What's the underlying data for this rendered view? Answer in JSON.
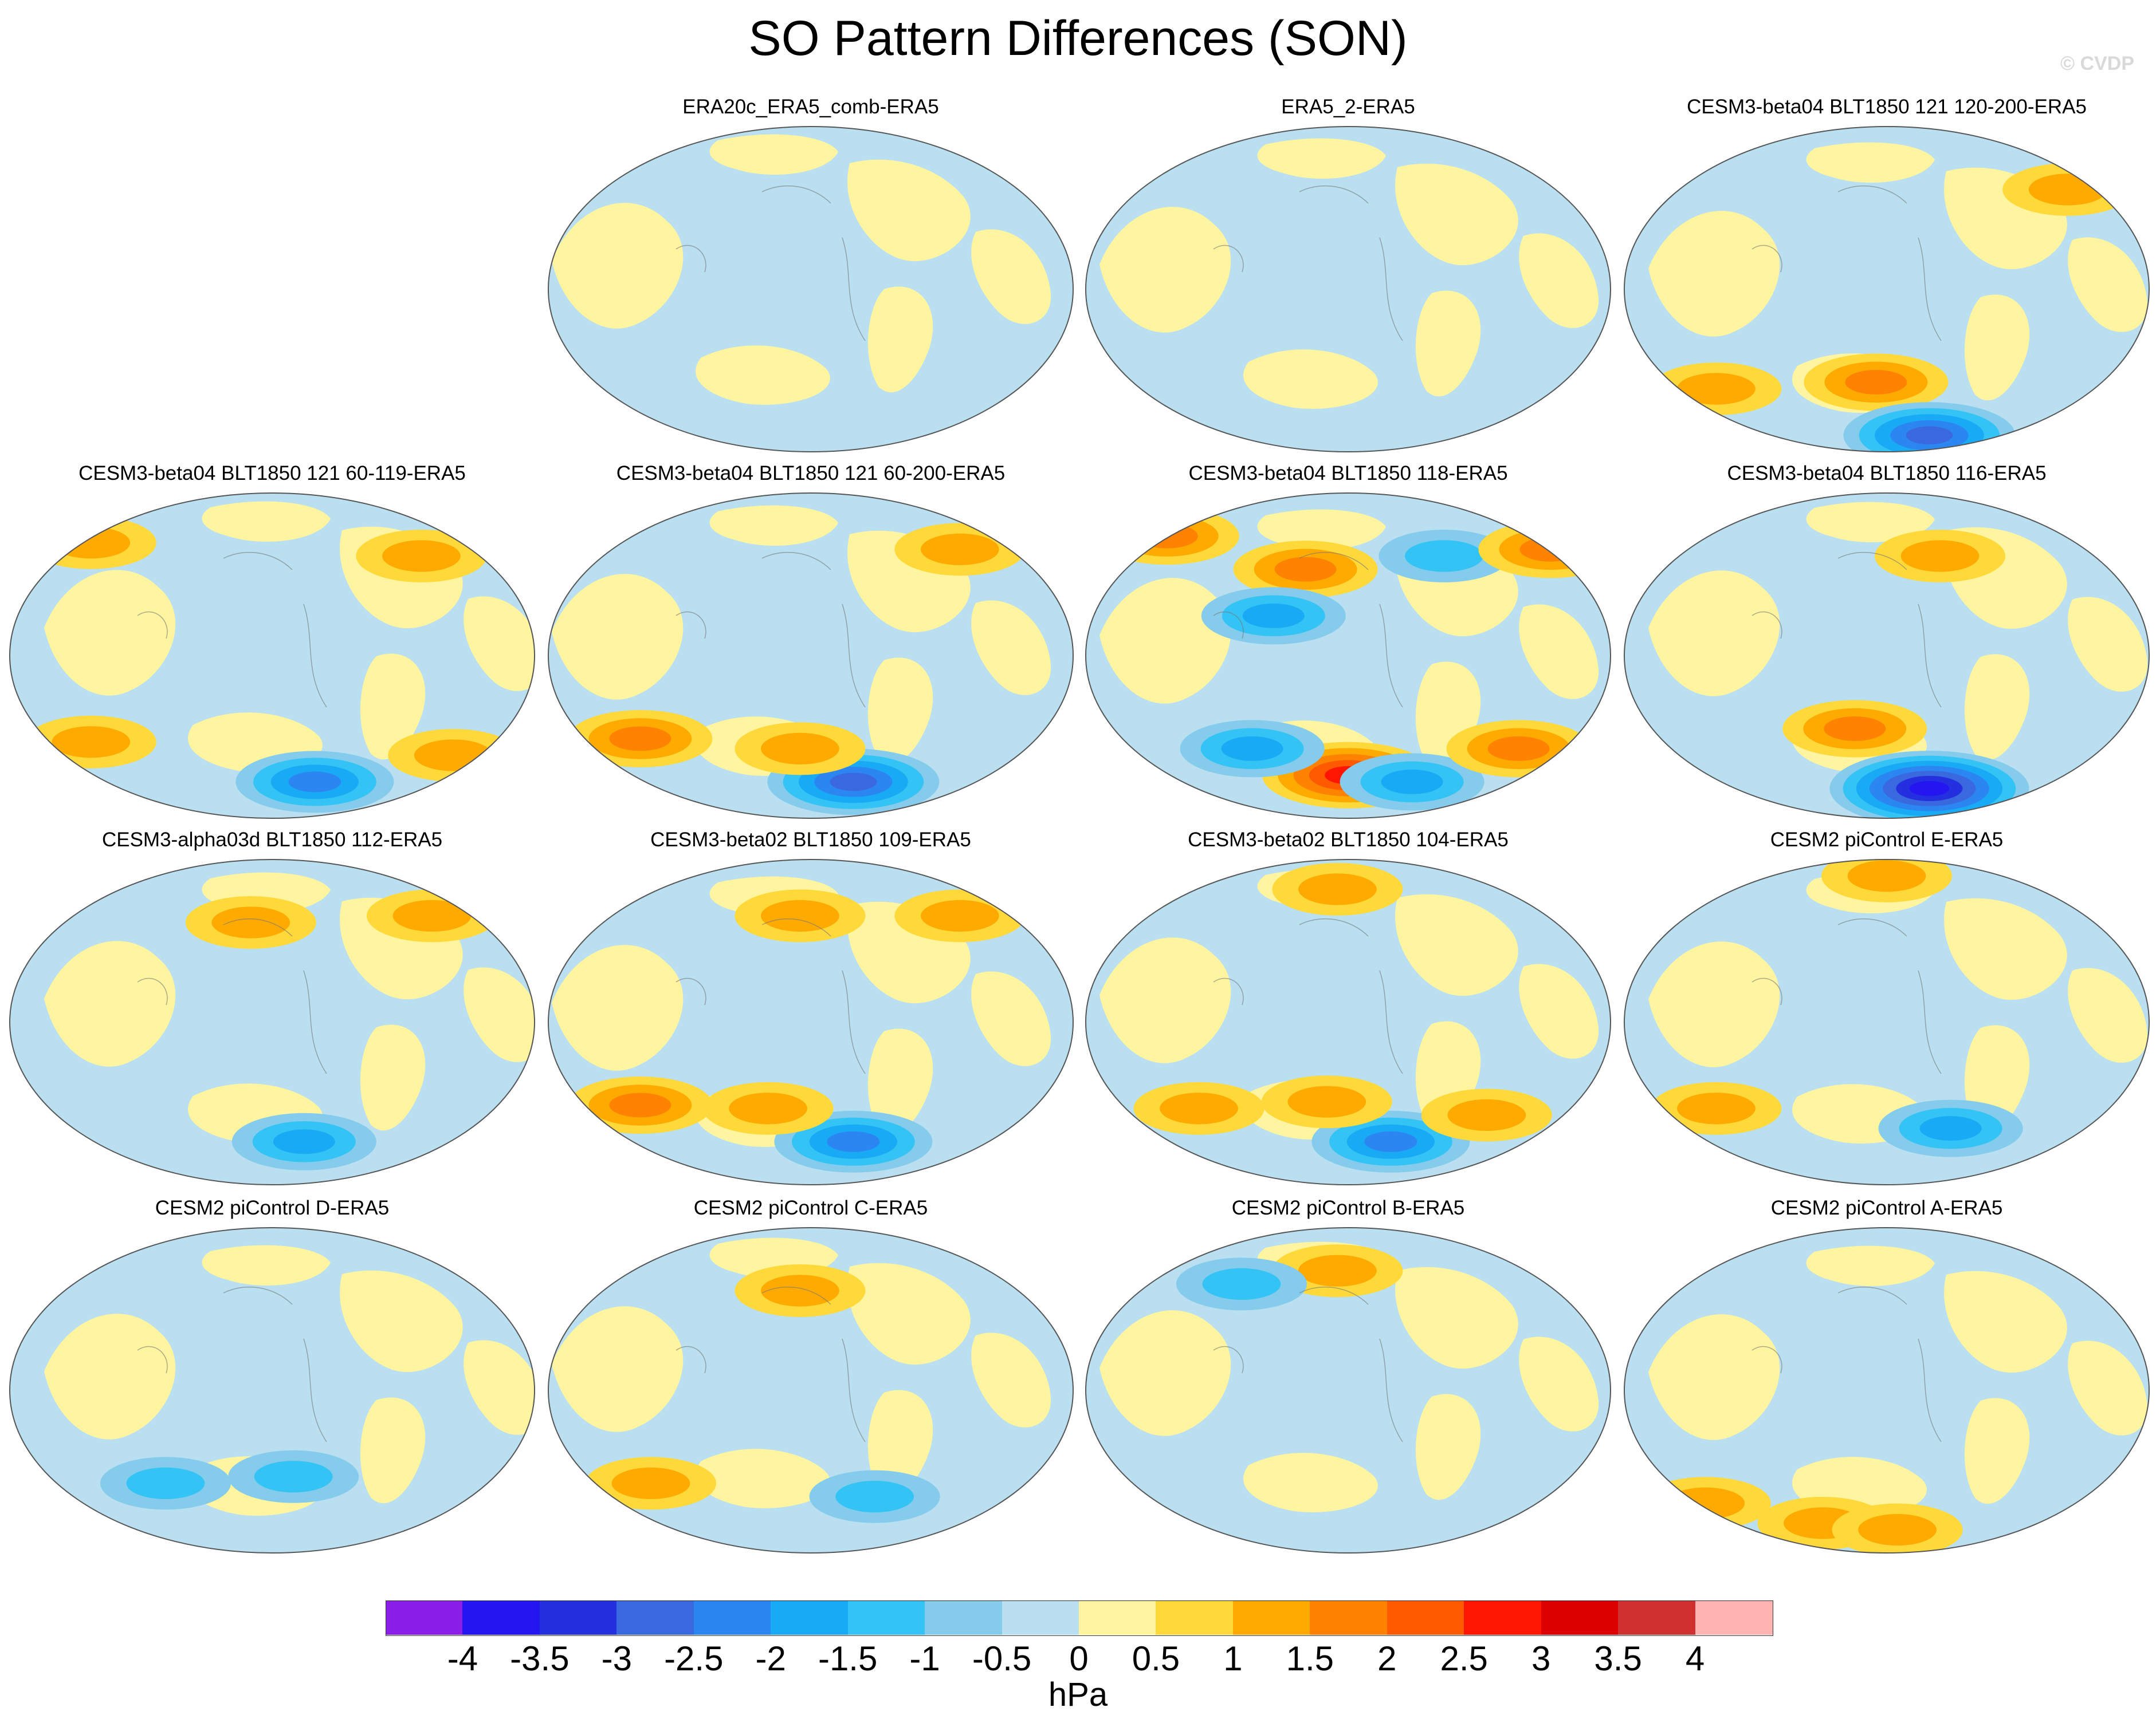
{
  "figure": {
    "title": "SO Pattern Differences (SON)",
    "watermark": "© CVDP"
  },
  "colors": {
    "ocean_neg": "#b9dff0",
    "land_pos": "#fff4a0"
  },
  "chart_data": {
    "type": "map-panels",
    "units": "hPa",
    "color_scale": {
      "boxes": [
        "#8b1fe8",
        "#2316f0",
        "#2430e0",
        "#3a68df",
        "#2b86f2",
        "#19aaf5",
        "#33c3f4",
        "#84cbec",
        "#b9dff0",
        "#fff4a0",
        "#ffd93a",
        "#ffaa00",
        "#ff8200",
        "#ff5a00",
        "#ff1500",
        "#dd0000",
        "#cf3030",
        "#ffb3b3"
      ],
      "labels": [
        "-4",
        "-3.5",
        "-3",
        "-2.5",
        "-2",
        "-1.5",
        "-1",
        "-0.5",
        "0",
        "0.5",
        "1",
        "1.5",
        "2",
        "2.5",
        "3",
        "3.5",
        "4"
      ]
    },
    "panels": [
      {
        "title": "ERA20c_ERA5_comb-ERA5",
        "row": 0,
        "col": 1,
        "features": []
      },
      {
        "title": "ERA5_2-ERA5",
        "row": 0,
        "col": 2,
        "features": []
      },
      {
        "title": "CESM3-beta04 BLT1850 121 120-200-ERA5",
        "row": 0,
        "col": 3,
        "features": [
          {
            "u": 0.18,
            "v": 0.8,
            "level": 1
          },
          {
            "u": 0.48,
            "v": 0.78,
            "level": 1.5
          },
          {
            "u": 0.58,
            "v": 0.94,
            "level": -2.5
          },
          {
            "u": 0.84,
            "v": 0.2,
            "level": 1
          }
        ]
      },
      {
        "title": "CESM3-beta04 BLT1850 121 60-119-ERA5",
        "row": 1,
        "col": 0,
        "features": [
          {
            "u": 0.58,
            "v": 0.88,
            "level": -2
          },
          {
            "u": 0.16,
            "v": 0.76,
            "level": 1
          },
          {
            "u": 0.84,
            "v": 0.8,
            "level": 1
          },
          {
            "u": 0.16,
            "v": 0.16,
            "level": 1
          },
          {
            "u": 0.78,
            "v": 0.2,
            "level": 1
          }
        ]
      },
      {
        "title": "CESM3-beta04 BLT1850 121 60-200-ERA5",
        "row": 1,
        "col": 1,
        "features": [
          {
            "u": 0.58,
            "v": 0.88,
            "level": -2.5
          },
          {
            "u": 0.18,
            "v": 0.75,
            "level": 1.5
          },
          {
            "u": 0.48,
            "v": 0.78,
            "level": 1
          },
          {
            "u": 0.78,
            "v": 0.18,
            "level": 1
          }
        ]
      },
      {
        "title": "CESM3-beta04 BLT1850 118-ERA5",
        "row": 1,
        "col": 2,
        "features": [
          {
            "u": 0.5,
            "v": 0.86,
            "level": 2.5
          },
          {
            "u": 0.62,
            "v": 0.88,
            "level": -1.5
          },
          {
            "u": 0.32,
            "v": 0.78,
            "level": -1.5
          },
          {
            "u": 0.82,
            "v": 0.78,
            "level": 1.5
          },
          {
            "u": 0.16,
            "v": 0.14,
            "level": 1.5
          },
          {
            "u": 0.42,
            "v": 0.24,
            "level": 1.5
          },
          {
            "u": 0.68,
            "v": 0.2,
            "level": -1
          },
          {
            "u": 0.88,
            "v": 0.18,
            "level": 1.5
          },
          {
            "u": 0.36,
            "v": 0.38,
            "level": -1.5
          }
        ]
      },
      {
        "title": "CESM3-beta04 BLT1850 116-ERA5",
        "row": 1,
        "col": 3,
        "features": [
          {
            "u": 0.58,
            "v": 0.9,
            "level": -3.5
          },
          {
            "u": 0.44,
            "v": 0.72,
            "level": 1.5
          },
          {
            "u": 0.6,
            "v": 0.2,
            "level": 1
          }
        ]
      },
      {
        "title": "CESM3-alpha03d BLT1850 112-ERA5",
        "row": 2,
        "col": 0,
        "features": [
          {
            "u": 0.56,
            "v": 0.86,
            "level": -1.5
          },
          {
            "u": 0.46,
            "v": 0.2,
            "level": 1
          },
          {
            "u": 0.8,
            "v": 0.18,
            "level": 1
          }
        ]
      },
      {
        "title": "CESM3-beta02 BLT1850 109-ERA5",
        "row": 2,
        "col": 1,
        "features": [
          {
            "u": 0.58,
            "v": 0.86,
            "level": -2
          },
          {
            "u": 0.18,
            "v": 0.75,
            "level": 1.5
          },
          {
            "u": 0.42,
            "v": 0.76,
            "level": 1
          },
          {
            "u": 0.48,
            "v": 0.18,
            "level": 1
          },
          {
            "u": 0.78,
            "v": 0.18,
            "level": 1
          }
        ]
      },
      {
        "title": "CESM3-beta02 BLT1850 104-ERA5",
        "row": 2,
        "col": 2,
        "features": [
          {
            "u": 0.58,
            "v": 0.86,
            "level": -2
          },
          {
            "u": 0.46,
            "v": 0.74,
            "level": 1
          },
          {
            "u": 0.22,
            "v": 0.76,
            "level": 1
          },
          {
            "u": 0.76,
            "v": 0.78,
            "level": 1
          },
          {
            "u": 0.48,
            "v": 0.1,
            "level": 1
          }
        ]
      },
      {
        "title": "CESM2 piControl E-ERA5",
        "row": 2,
        "col": 3,
        "features": [
          {
            "u": 0.62,
            "v": 0.82,
            "level": -1.5
          },
          {
            "u": 0.18,
            "v": 0.76,
            "level": 1
          },
          {
            "u": 0.5,
            "v": 0.06,
            "level": 1
          }
        ]
      },
      {
        "title": "CESM2 piControl D-ERA5",
        "row": 3,
        "col": 0,
        "features": [
          {
            "u": 0.54,
            "v": 0.76,
            "level": -1
          },
          {
            "u": 0.3,
            "v": 0.78,
            "level": -1
          }
        ]
      },
      {
        "title": "CESM2 piControl C-ERA5",
        "row": 3,
        "col": 1,
        "features": [
          {
            "u": 0.48,
            "v": 0.2,
            "level": 1
          },
          {
            "u": 0.2,
            "v": 0.78,
            "level": 1
          },
          {
            "u": 0.62,
            "v": 0.82,
            "level": -1
          }
        ]
      },
      {
        "title": "CESM2 piControl B-ERA5",
        "row": 3,
        "col": 2,
        "features": [
          {
            "u": 0.48,
            "v": 0.14,
            "level": 1
          },
          {
            "u": 0.3,
            "v": 0.18,
            "level": -1
          }
        ]
      },
      {
        "title": "CESM2 piControl A-ERA5",
        "row": 3,
        "col": 3,
        "features": [
          {
            "u": 0.38,
            "v": 0.9,
            "level": 1
          },
          {
            "u": 0.16,
            "v": 0.84,
            "level": 1
          },
          {
            "u": 0.52,
            "v": 0.92,
            "level": 1
          }
        ]
      }
    ]
  }
}
